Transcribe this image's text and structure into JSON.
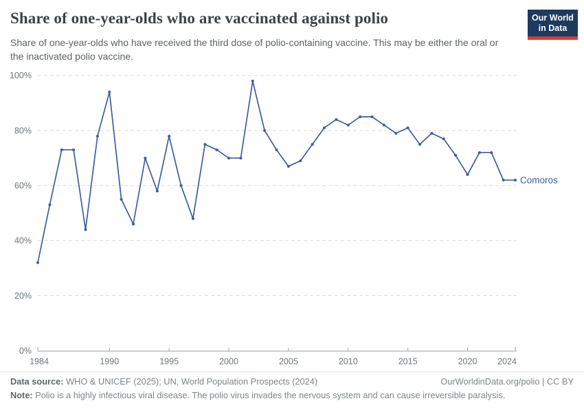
{
  "header": {
    "title": "Share of one-year-olds who are vaccinated against polio",
    "subtitle": "Share of one-year-olds who have received the third dose of polio-containing vaccine. This may be either the oral or the inactivated polio vaccine.",
    "logo": {
      "line1": "Our World",
      "line2": "in Data"
    }
  },
  "chart_data": {
    "type": "line",
    "title": "Share of one-year-olds who are vaccinated against polio",
    "xlabel": "",
    "ylabel": "",
    "xlim": [
      1984,
      2024
    ],
    "ylim": [
      0,
      100
    ],
    "grid": "horizontal-dashed",
    "legend_position": "end-of-line-label",
    "x_ticks": [
      "1984",
      "1990",
      "1995",
      "2000",
      "2005",
      "2010",
      "2015",
      "2020",
      "2024"
    ],
    "y_ticks": [
      "0%",
      "20%",
      "40%",
      "60%",
      "80%",
      "100%"
    ],
    "series": [
      {
        "name": "Comoros",
        "color": "#3e5c9e",
        "x": [
          1984,
          1985,
          1986,
          1987,
          1988,
          1989,
          1990,
          1991,
          1992,
          1993,
          1994,
          1995,
          1996,
          1997,
          1998,
          1999,
          2000,
          2001,
          2002,
          2003,
          2004,
          2005,
          2006,
          2007,
          2008,
          2009,
          2010,
          2011,
          2012,
          2013,
          2014,
          2015,
          2016,
          2017,
          2018,
          2019,
          2020,
          2021,
          2022,
          2023,
          2024
        ],
        "values": [
          32,
          53,
          73,
          73,
          44,
          78,
          94,
          55,
          46,
          70,
          58,
          78,
          60,
          48,
          75,
          73,
          70,
          70,
          98,
          80,
          73,
          67,
          69,
          75,
          81,
          84,
          82,
          85,
          85,
          82,
          79,
          81,
          75,
          79,
          77,
          71,
          64,
          72,
          72,
          62,
          62
        ]
      }
    ],
    "colors": {
      "line": "#3e5c9e",
      "grid": "#dadada",
      "axis": "#9aa0a3",
      "tick_label": "#6e7579"
    }
  },
  "footer": {
    "source_label": "Data source:",
    "source_text": " WHO & UNICEF (2025); UN, World Population Prospects (2024)",
    "link_text": "OurWorldinData.org/polio | CC BY",
    "note_label": "Note:",
    "note_text": " Polio is a highly infectious viral disease. The polio virus invades the nervous system and can cause irreversible paralysis."
  }
}
